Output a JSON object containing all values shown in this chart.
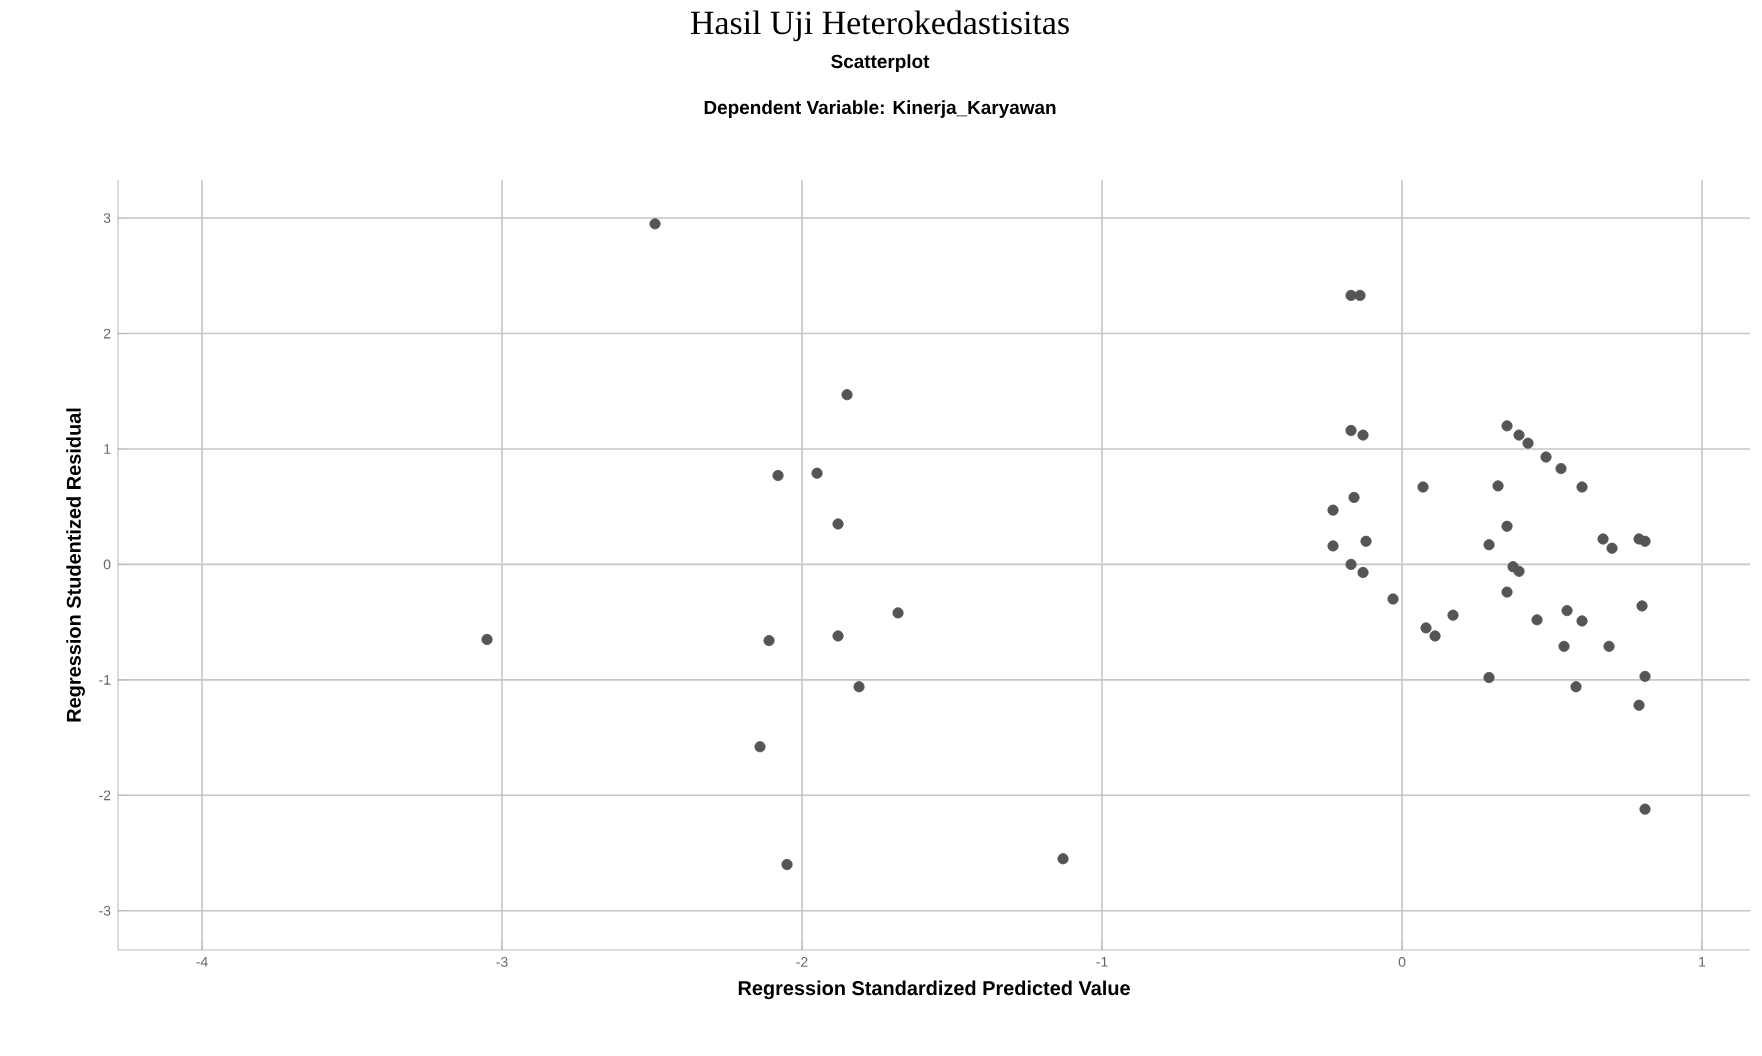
{
  "chart_data": {
    "type": "scatter",
    "title": "Hasil Uji Heterokedastisitas",
    "subtitle": "Scatterplot",
    "annotations": [
      "Dependent Variable: Kinerja_Karyawan"
    ],
    "xlabel": "Regression Standardized Predicted Value",
    "ylabel": "Regression Studentized Residual",
    "xlim": [
      -4.28,
      1.16
    ],
    "ylim": [
      -3.34,
      3.33
    ],
    "xticks": [
      -4,
      -3,
      -2,
      -1,
      0,
      1
    ],
    "yticks": [
      -3,
      -2,
      -1,
      0,
      1,
      2,
      3
    ],
    "grid": true,
    "marker": "circle",
    "series": [
      {
        "color": "#555555",
        "x": [
          -2.49,
          -1.85,
          -2.08,
          -1.95,
          -1.88,
          -1.68,
          -3.05,
          -2.11,
          -1.88,
          -1.81,
          -2.14,
          -2.05,
          -1.13,
          -0.17,
          -0.14,
          -0.17,
          -0.13,
          -0.23,
          -0.16,
          -0.23,
          -0.12,
          -0.17,
          -0.13,
          -0.03,
          0.07,
          0.08,
          0.11,
          0.17,
          0.29,
          0.29,
          0.32,
          0.35,
          0.35,
          0.37,
          0.39,
          0.35,
          0.39,
          0.42,
          0.48,
          0.53,
          0.6,
          0.45,
          0.55,
          0.6,
          0.54,
          0.58,
          0.67,
          0.7,
          0.69,
          0.79,
          0.81,
          0.8,
          0.81,
          0.79,
          0.81
        ],
        "values": [
          2.95,
          1.47,
          0.77,
          0.79,
          0.35,
          -0.42,
          -0.65,
          -0.66,
          -0.62,
          -1.06,
          -1.58,
          -2.6,
          -2.55,
          2.33,
          2.33,
          1.16,
          1.12,
          0.47,
          0.58,
          0.16,
          0.2,
          0.0,
          -0.07,
          -0.3,
          0.67,
          -0.55,
          -0.62,
          -0.44,
          -0.98,
          0.17,
          0.68,
          0.33,
          -0.24,
          -0.02,
          -0.06,
          1.2,
          1.12,
          1.05,
          0.93,
          0.83,
          0.67,
          -0.48,
          -0.4,
          -0.49,
          -0.71,
          -1.06,
          0.22,
          0.14,
          -0.71,
          0.22,
          0.2,
          -0.36,
          -0.97,
          -1.22,
          -2.12
        ]
      }
    ]
  }
}
